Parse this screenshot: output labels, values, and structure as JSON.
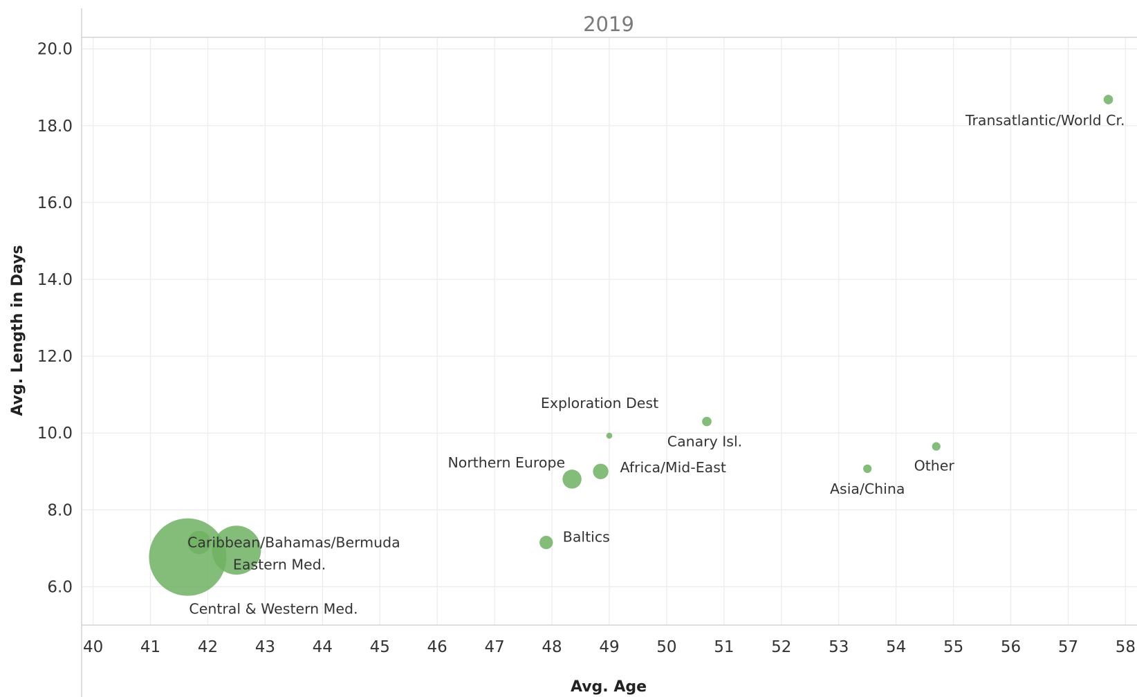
{
  "chart_data": {
    "type": "scatter",
    "title": "2019",
    "xlabel": "Avg. Age",
    "ylabel": "Avg. Length in Days",
    "xlim": [
      39.8,
      58.2
    ],
    "ylim": [
      5.0,
      20.3
    ],
    "x_ticks": [
      "40",
      "41",
      "42",
      "43",
      "44",
      "45",
      "46",
      "47",
      "48",
      "49",
      "50",
      "51",
      "52",
      "53",
      "54",
      "55",
      "56",
      "57",
      "58"
    ],
    "y_ticks": [
      "6.0",
      "8.0",
      "10.0",
      "12.0",
      "14.0",
      "16.0",
      "18.0",
      "20.0"
    ],
    "grid": true,
    "bubble_color": "#6fb162",
    "size_encoding": "relative volume (legend not shown)",
    "points": [
      {
        "label": "Central & Western Med.",
        "x": 41.65,
        "y": 6.77,
        "size": 100
      },
      {
        "label": "Eastern Med.",
        "x": 42.5,
        "y": 6.95,
        "size": 40
      },
      {
        "label": "Caribbean/Bahamas/Bermuda",
        "x": 41.85,
        "y": 7.15,
        "size": 9
      },
      {
        "label": "Baltics",
        "x": 47.9,
        "y": 7.15,
        "size": 3
      },
      {
        "label": "Northern Europe",
        "x": 48.35,
        "y": 8.8,
        "size": 6
      },
      {
        "label": "Africa/Mid-East",
        "x": 48.85,
        "y": 9.0,
        "size": 4
      },
      {
        "label": "Exploration Dest",
        "x": 49.0,
        "y": 9.93,
        "size": 0.6
      },
      {
        "label": "Canary Isl.",
        "x": 50.7,
        "y": 10.3,
        "size": 1.5
      },
      {
        "label": "Asia/China",
        "x": 53.5,
        "y": 9.07,
        "size": 1.2
      },
      {
        "label": "Other",
        "x": 54.7,
        "y": 9.65,
        "size": 1.2
      },
      {
        "label": "Transatlantic/World Cr.",
        "x": 57.7,
        "y": 18.68,
        "size": 1.5
      }
    ]
  }
}
